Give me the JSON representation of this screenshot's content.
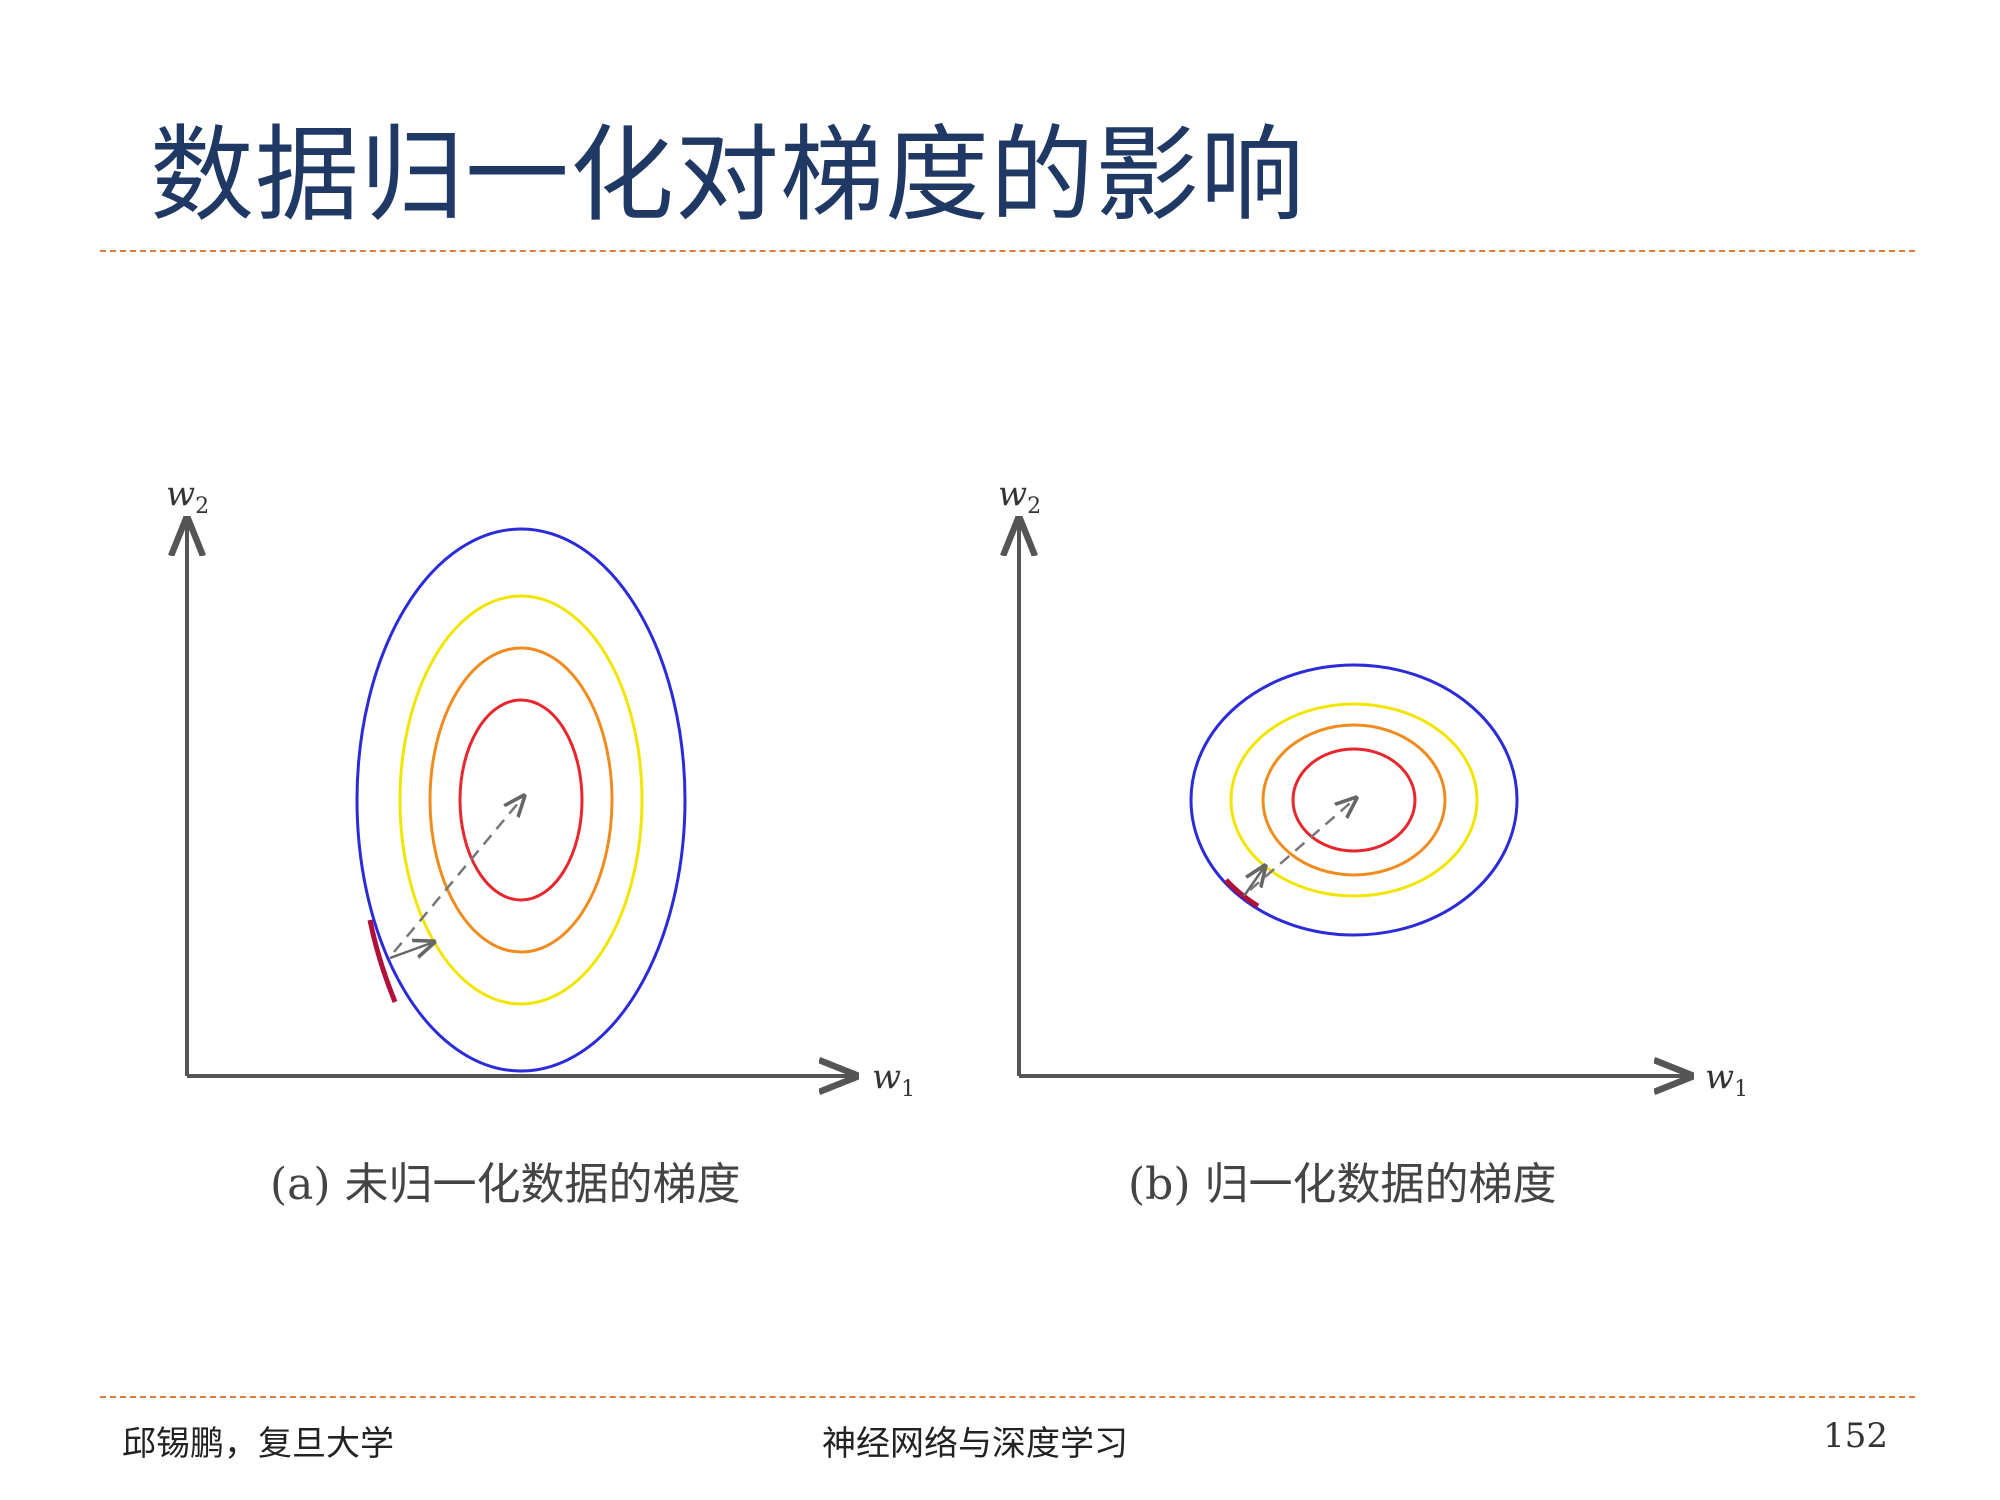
{
  "slide": {
    "title": "数据归一化对梯度的影响",
    "footer_left": "邱锡鹏，复旦大学",
    "footer_center": "神经网络与深度学习",
    "page_number": "152"
  },
  "colors": {
    "title": "#1F3864",
    "rule": "#E07B39",
    "contour_outer": "#2B2BD9",
    "contour_2": "#F2E600",
    "contour_3": "#F08C1E",
    "contour_inner": "#E8262E",
    "gradient_segment": "#B0103A",
    "axis": "#555555"
  },
  "panels": [
    {
      "caption": "(a) 未归一化数据的梯度",
      "x_label": "w1",
      "y_label": "w2",
      "contours": "elongated ellipses (not normalized)"
    },
    {
      "caption": "(b) 归一化数据的梯度",
      "x_label": "w1",
      "y_label": "w2",
      "contours": "near-circular ellipses (normalized)"
    }
  ]
}
